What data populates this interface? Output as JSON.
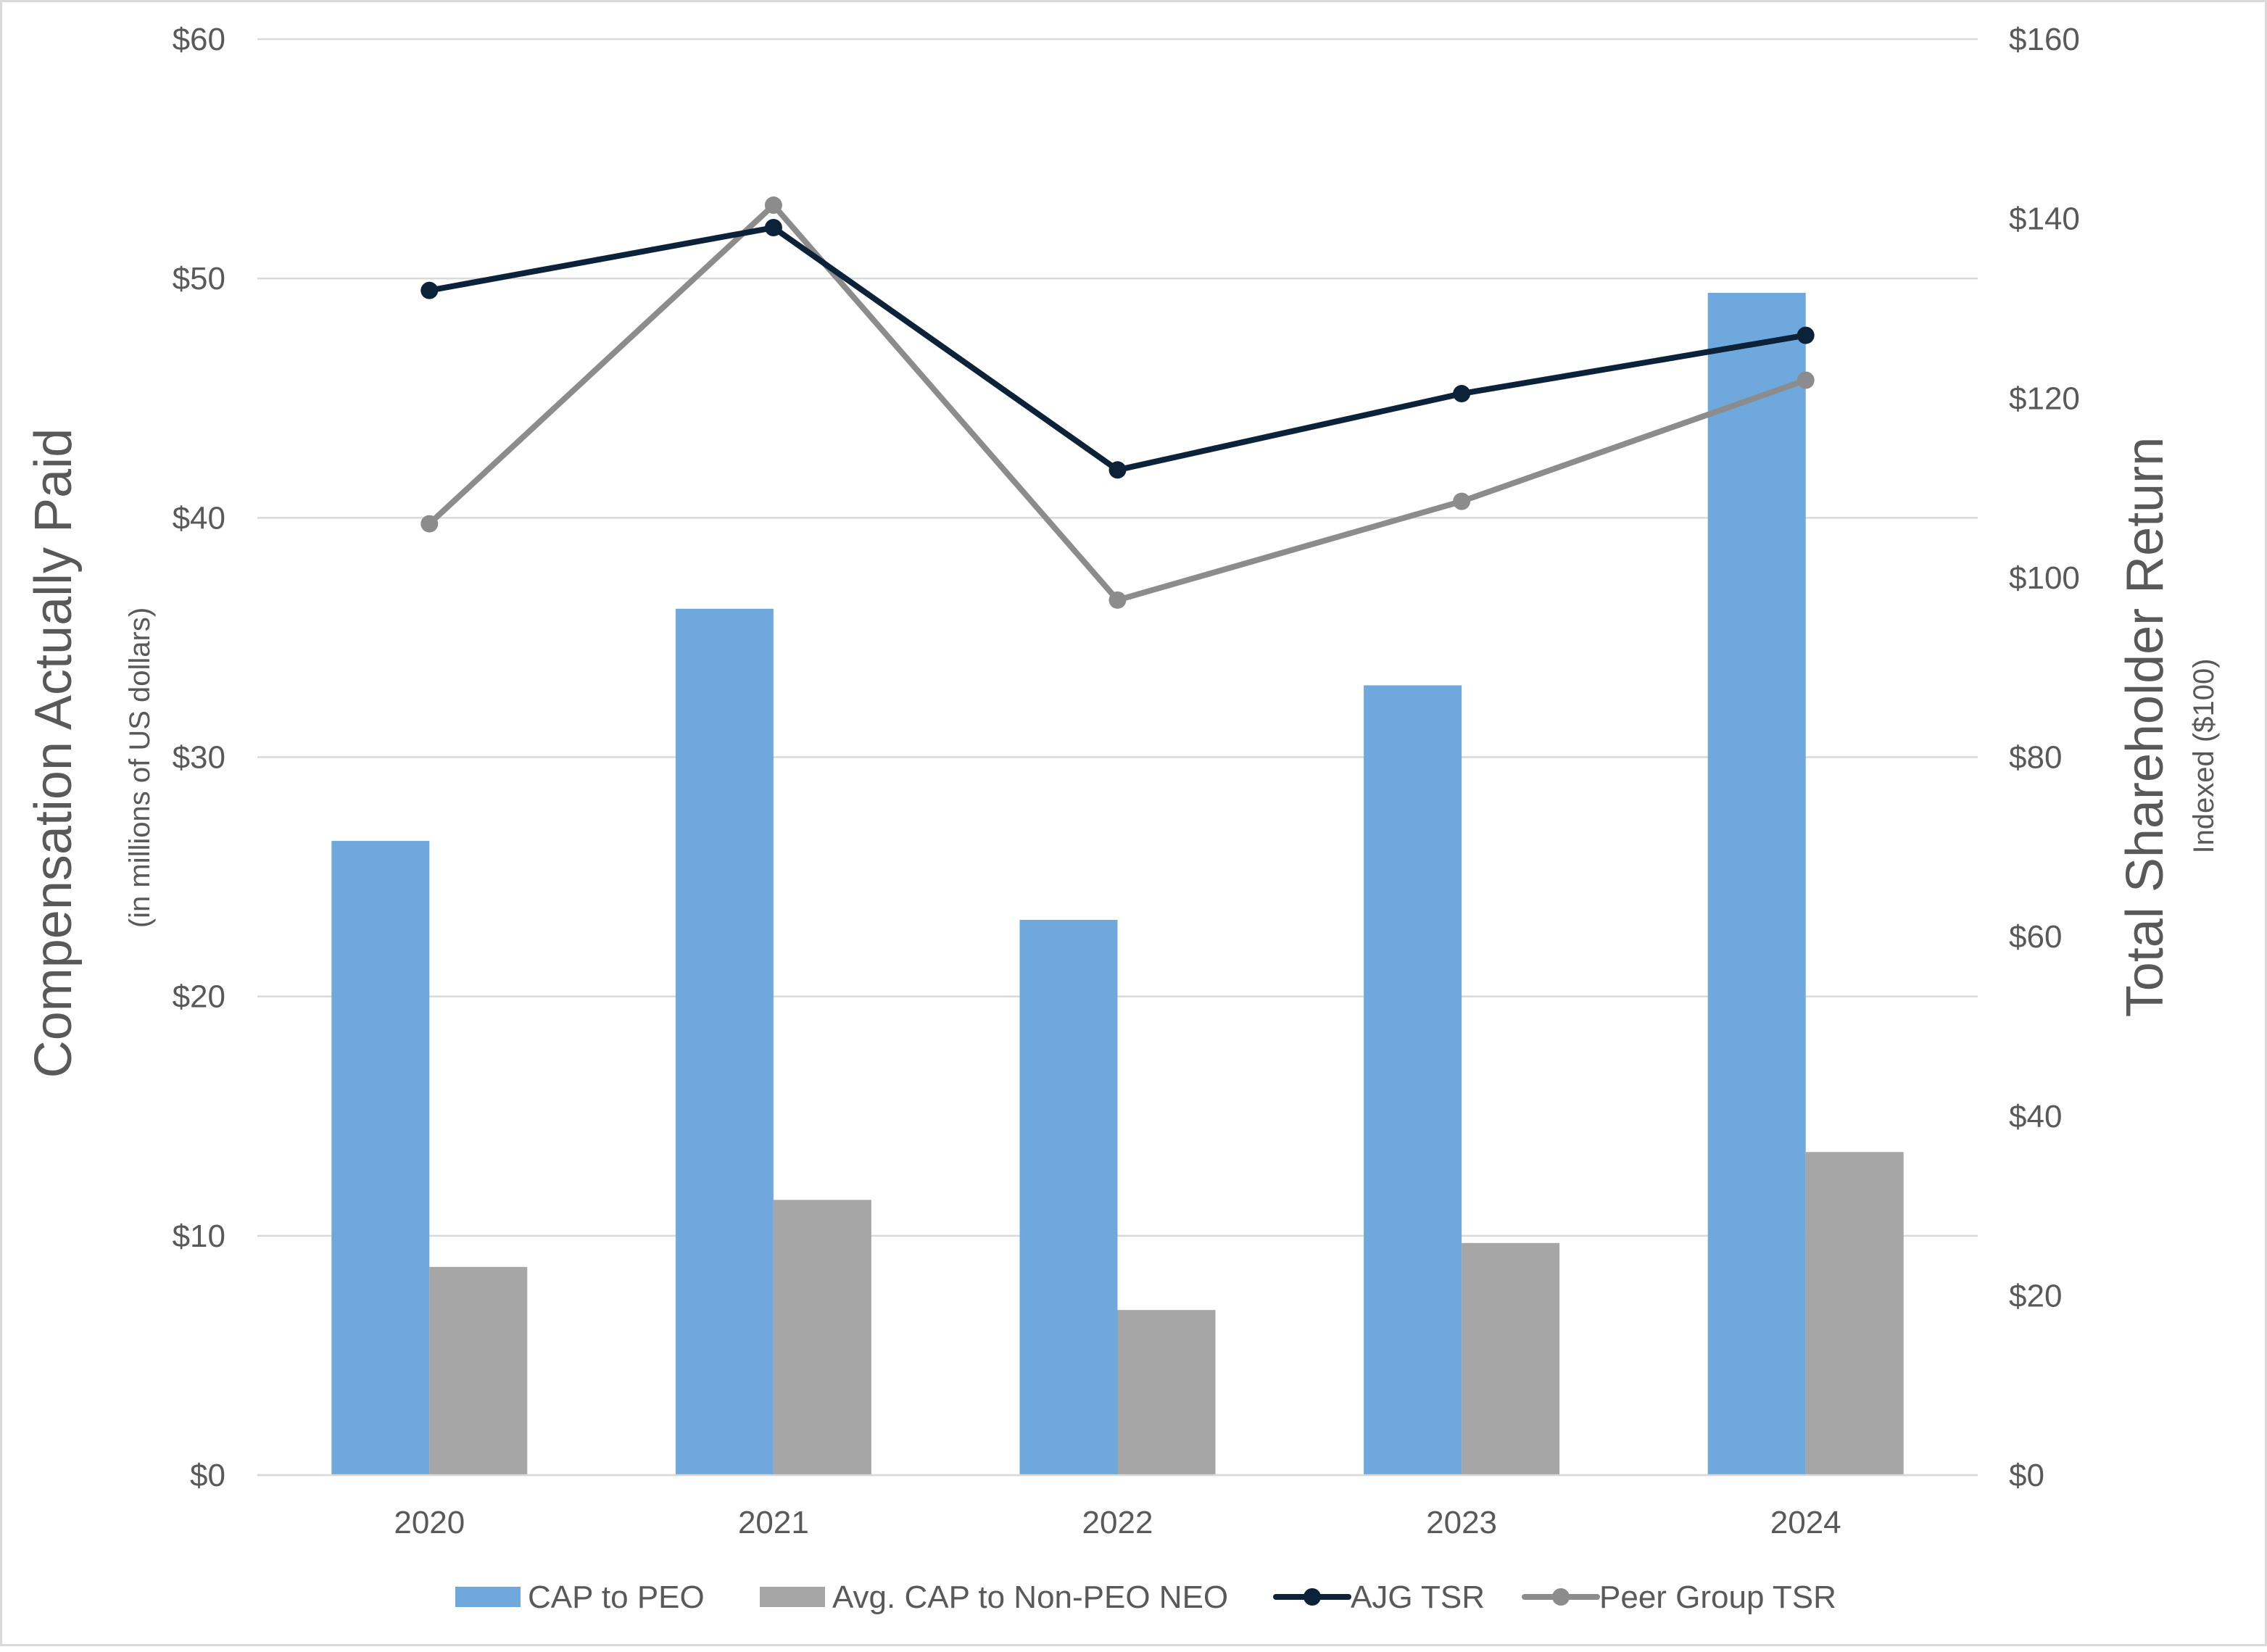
{
  "chart_data": {
    "type": "bar",
    "categories": [
      "2020",
      "2021",
      "2022",
      "2023",
      "2024"
    ],
    "series": [
      {
        "name": "CAP to PEO",
        "type": "bar",
        "axis": "left",
        "color": "#6FA8DC",
        "values": [
          26.5,
          36.2,
          23.2,
          33.0,
          49.4
        ]
      },
      {
        "name": "Avg. CAP to Non-PEO NEO",
        "type": "bar",
        "axis": "left",
        "color": "#A6A6A6",
        "values": [
          8.7,
          11.5,
          6.9,
          9.7,
          13.5
        ]
      },
      {
        "name": "AJG TSR",
        "type": "line",
        "axis": "right",
        "color": "#0B2239",
        "values": [
          132,
          139,
          112,
          120.5,
          127
        ]
      },
      {
        "name": "Peer Group TSR",
        "type": "line",
        "axis": "right",
        "color": "#8C8C8C",
        "values": [
          106,
          141.5,
          97.5,
          108.5,
          122
        ]
      }
    ],
    "yleft": {
      "label": "Compensation Actually Paid",
      "sublabel": "(in millions of US dollars)",
      "lim": [
        0,
        60
      ],
      "ticks": [
        0,
        10,
        20,
        30,
        40,
        50,
        60
      ],
      "tick_labels": [
        "$0",
        "$10",
        "$20",
        "$30",
        "$40",
        "$50",
        "$60"
      ]
    },
    "yright": {
      "label": "Total Shareholder Return",
      "sublabel": "Indexed ($100)",
      "lim": [
        0,
        160
      ],
      "ticks": [
        0,
        20,
        40,
        60,
        80,
        100,
        120,
        140,
        160
      ],
      "tick_labels": [
        "$0",
        "$20",
        "$40",
        "$60",
        "$80",
        "$100",
        "$120",
        "$140",
        "$160"
      ]
    },
    "grid": true,
    "legend_position": "bottom"
  }
}
